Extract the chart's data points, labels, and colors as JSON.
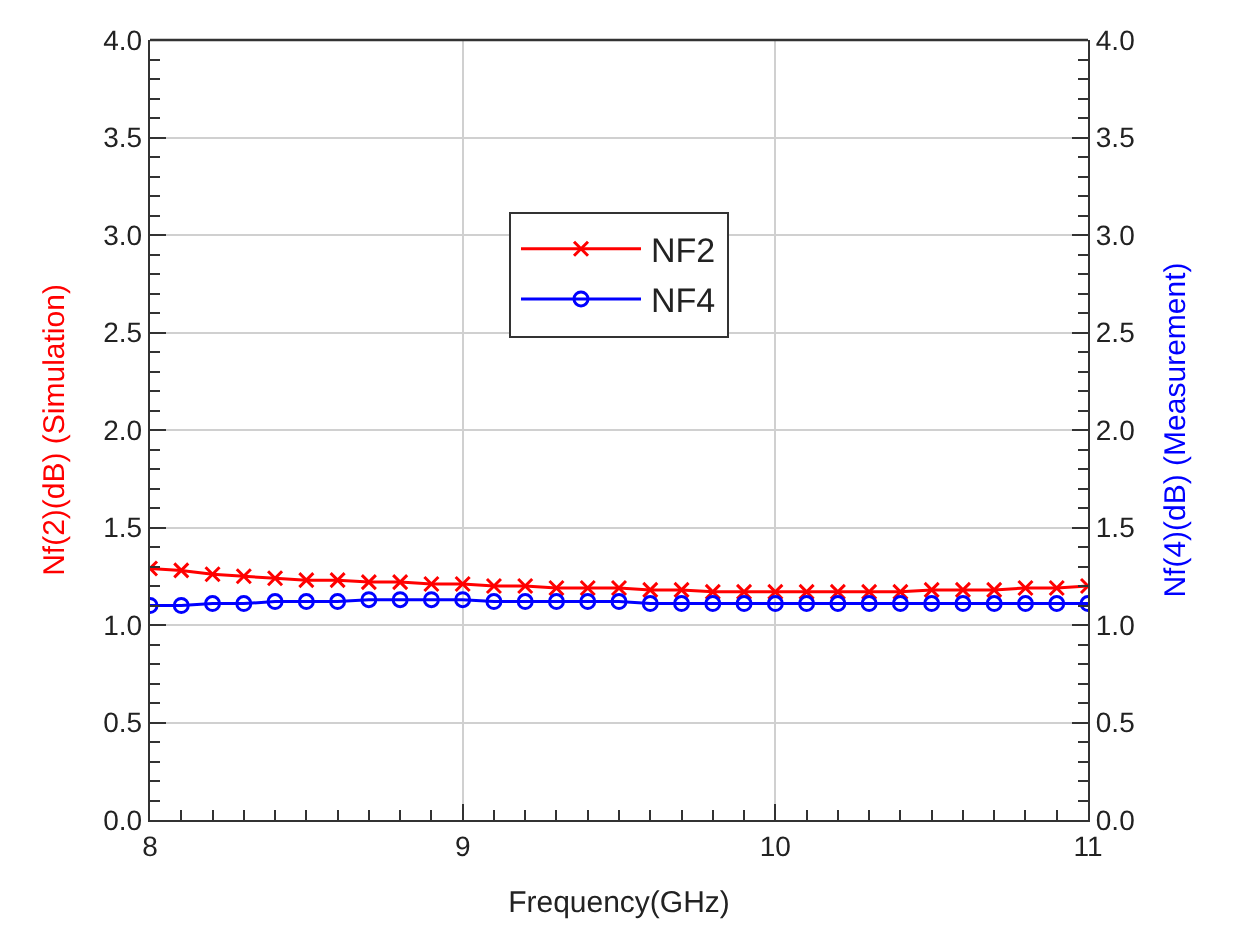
{
  "chart_data": {
    "type": "line",
    "xlabel": "Frequency(GHz)",
    "ylabel": "Nf(2)(dB) (Simulation)",
    "y2label": "Nf(4)(dB) (Measurement)",
    "x": [
      8.0,
      8.1,
      8.2,
      8.3,
      8.4,
      8.5,
      8.6,
      8.7,
      8.8,
      8.9,
      9.0,
      9.1,
      9.2,
      9.3,
      9.4,
      9.5,
      9.6,
      9.7,
      9.8,
      9.9,
      10.0,
      10.1,
      10.2,
      10.3,
      10.4,
      10.5,
      10.6,
      10.7,
      10.8,
      10.9,
      11.0
    ],
    "series": [
      {
        "name": "NF2",
        "color": "#ff0000",
        "marker": "cross",
        "values": [
          1.29,
          1.28,
          1.26,
          1.25,
          1.24,
          1.23,
          1.23,
          1.22,
          1.22,
          1.21,
          1.21,
          1.2,
          1.2,
          1.19,
          1.19,
          1.19,
          1.18,
          1.18,
          1.17,
          1.17,
          1.17,
          1.17,
          1.17,
          1.17,
          1.17,
          1.18,
          1.18,
          1.18,
          1.19,
          1.19,
          1.2
        ]
      },
      {
        "name": "NF4",
        "color": "#0000ff",
        "marker": "circle",
        "axis": "y2",
        "values": [
          1.1,
          1.1,
          1.11,
          1.11,
          1.12,
          1.12,
          1.12,
          1.13,
          1.13,
          1.13,
          1.13,
          1.12,
          1.12,
          1.12,
          1.12,
          1.12,
          1.11,
          1.11,
          1.11,
          1.11,
          1.11,
          1.11,
          1.11,
          1.11,
          1.11,
          1.11,
          1.11,
          1.11,
          1.11,
          1.11,
          1.11
        ]
      }
    ],
    "xlim": [
      8,
      11
    ],
    "xticks": [
      8,
      9,
      10,
      11
    ],
    "ylim": [
      0.0,
      4.0
    ],
    "yticks": [
      {
        "value": 0,
        "label": "0.0"
      },
      {
        "value": 0.5,
        "label": "0.5"
      },
      {
        "value": 1,
        "label": "1.0"
      },
      {
        "value": 1.5,
        "label": "1.5"
      },
      {
        "value": 2,
        "label": "2.0"
      },
      {
        "value": 2.5,
        "label": "2.5"
      },
      {
        "value": 3,
        "label": "3.0"
      },
      {
        "value": 3.5,
        "label": "3.5"
      },
      {
        "value": 4,
        "label": "4.0"
      }
    ],
    "y2lim": [
      0.0,
      4.0
    ],
    "y2ticks": [
      {
        "value": 0,
        "label": "0.0"
      },
      {
        "value": 0.5,
        "label": "0.5"
      },
      {
        "value": 1,
        "label": "1.0"
      },
      {
        "value": 1.5,
        "label": "1.5"
      },
      {
        "value": 2,
        "label": "2.0"
      },
      {
        "value": 2.5,
        "label": "2.5"
      },
      {
        "value": 3,
        "label": "3.0"
      },
      {
        "value": 3.5,
        "label": "3.5"
      },
      {
        "value": 4,
        "label": "4.0"
      }
    ],
    "grid": true,
    "legend": "top",
    "line_style": "solid"
  }
}
